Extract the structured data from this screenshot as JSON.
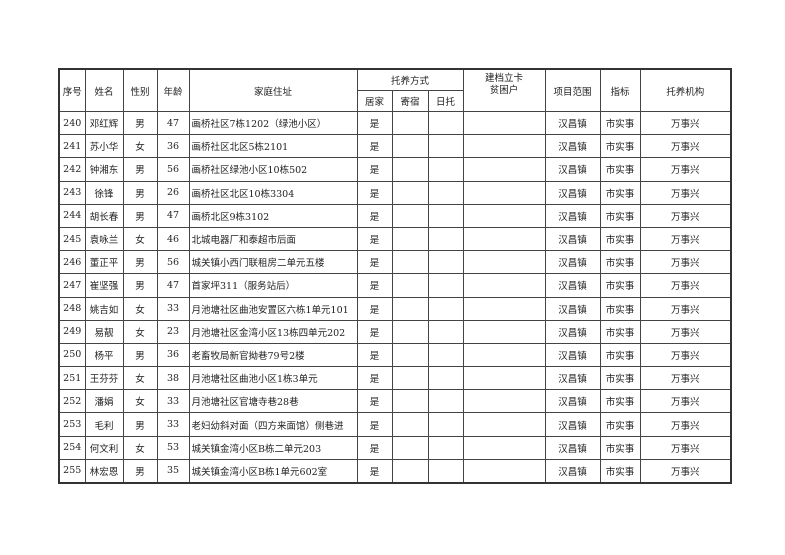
{
  "headers": {
    "seq": "序号",
    "name": "姓名",
    "gender": "性别",
    "age": "年龄",
    "address": "家庭住址",
    "care_mode": "托养方式",
    "care_home": "居家",
    "care_boarding": "寄宿",
    "care_day": "日托",
    "poverty_line1": "建档立卡",
    "poverty_line2": "贫困户",
    "scope": "项目范围",
    "indicator": "指标",
    "agency": "托养机构"
  },
  "rows": [
    {
      "seq": "240",
      "name": "邓红辉",
      "gender": "男",
      "age": "47",
      "address": "画桥社区7栋1202（绿池小区）",
      "home": "是",
      "boarding": "",
      "day": "",
      "poverty": "",
      "scope": "汉昌镇",
      "indicator": "市实事",
      "agency": "万事兴"
    },
    {
      "seq": "241",
      "name": "苏小华",
      "gender": "女",
      "age": "36",
      "address": "画桥社区北区5栋2101",
      "home": "是",
      "boarding": "",
      "day": "",
      "poverty": "",
      "scope": "汉昌镇",
      "indicator": "市实事",
      "agency": "万事兴"
    },
    {
      "seq": "242",
      "name": "钟湘东",
      "gender": "男",
      "age": "56",
      "address": "画桥社区绿池小区10栋502",
      "home": "是",
      "boarding": "",
      "day": "",
      "poverty": "",
      "scope": "汉昌镇",
      "indicator": "市实事",
      "agency": "万事兴"
    },
    {
      "seq": "243",
      "name": "徐锋",
      "gender": "男",
      "age": "26",
      "address": "画桥社区北区10栋3304",
      "home": "是",
      "boarding": "",
      "day": "",
      "poverty": "",
      "scope": "汉昌镇",
      "indicator": "市实事",
      "agency": "万事兴"
    },
    {
      "seq": "244",
      "name": "胡长春",
      "gender": "男",
      "age": "47",
      "address": "画桥北区9栋3102",
      "home": "是",
      "boarding": "",
      "day": "",
      "poverty": "",
      "scope": "汉昌镇",
      "indicator": "市实事",
      "agency": "万事兴"
    },
    {
      "seq": "245",
      "name": "袁咏兰",
      "gender": "女",
      "age": "46",
      "address": "北城电器厂和泰超市后面",
      "home": "是",
      "boarding": "",
      "day": "",
      "poverty": "",
      "scope": "汉昌镇",
      "indicator": "市实事",
      "agency": "万事兴"
    },
    {
      "seq": "246",
      "name": "董正平",
      "gender": "男",
      "age": "56",
      "address": "城关镇小西门联租房二单元五楼",
      "home": "是",
      "boarding": "",
      "day": "",
      "poverty": "",
      "scope": "汉昌镇",
      "indicator": "市实事",
      "agency": "万事兴"
    },
    {
      "seq": "247",
      "name": "崔坚强",
      "gender": "男",
      "age": "47",
      "address": "首家坪311（服务站后）",
      "home": "是",
      "boarding": "",
      "day": "",
      "poverty": "",
      "scope": "汉昌镇",
      "indicator": "市实事",
      "agency": "万事兴"
    },
    {
      "seq": "248",
      "name": "姚吉如",
      "gender": "女",
      "age": "33",
      "address": "月池塘社区曲池安置区六栋1单元101",
      "home": "是",
      "boarding": "",
      "day": "",
      "poverty": "",
      "scope": "汉昌镇",
      "indicator": "市实事",
      "agency": "万事兴"
    },
    {
      "seq": "249",
      "name": "易靓",
      "gender": "女",
      "age": "23",
      "address": "月池塘社区金湾小区13栋四单元202",
      "home": "是",
      "boarding": "",
      "day": "",
      "poverty": "",
      "scope": "汉昌镇",
      "indicator": "市实事",
      "agency": "万事兴"
    },
    {
      "seq": "250",
      "name": "杨平",
      "gender": "男",
      "age": "36",
      "address": "老畜牧局新官拗巷79号2楼",
      "home": "是",
      "boarding": "",
      "day": "",
      "poverty": "",
      "scope": "汉昌镇",
      "indicator": "市实事",
      "agency": "万事兴"
    },
    {
      "seq": "251",
      "name": "王芬芬",
      "gender": "女",
      "age": "38",
      "address": "月池塘社区曲池小区1栋3单元",
      "home": "是",
      "boarding": "",
      "day": "",
      "poverty": "",
      "scope": "汉昌镇",
      "indicator": "市实事",
      "agency": "万事兴"
    },
    {
      "seq": "252",
      "name": "潘娟",
      "gender": "女",
      "age": "33",
      "address": "月池塘社区官塘寺巷28巷",
      "home": "是",
      "boarding": "",
      "day": "",
      "poverty": "",
      "scope": "汉昌镇",
      "indicator": "市实事",
      "agency": "万事兴"
    },
    {
      "seq": "253",
      "name": "毛利",
      "gender": "男",
      "age": "33",
      "address": "老妇幼斜对面（四方来面馆）侧巷进",
      "home": "是",
      "boarding": "",
      "day": "",
      "poverty": "",
      "scope": "汉昌镇",
      "indicator": "市实事",
      "agency": "万事兴"
    },
    {
      "seq": "254",
      "name": "何文利",
      "gender": "女",
      "age": "53",
      "address": "城关镇金湾小区B栋二单元203",
      "home": "是",
      "boarding": "",
      "day": "",
      "poverty": "",
      "scope": "汉昌镇",
      "indicator": "市实事",
      "agency": "万事兴"
    },
    {
      "seq": "255",
      "name": "林宏恩",
      "gender": "男",
      "age": "35",
      "address": "城关镇金湾小区B栋1单元602室",
      "home": "是",
      "boarding": "",
      "day": "",
      "poverty": "",
      "scope": "汉昌镇",
      "indicator": "市实事",
      "agency": "万事兴"
    }
  ]
}
